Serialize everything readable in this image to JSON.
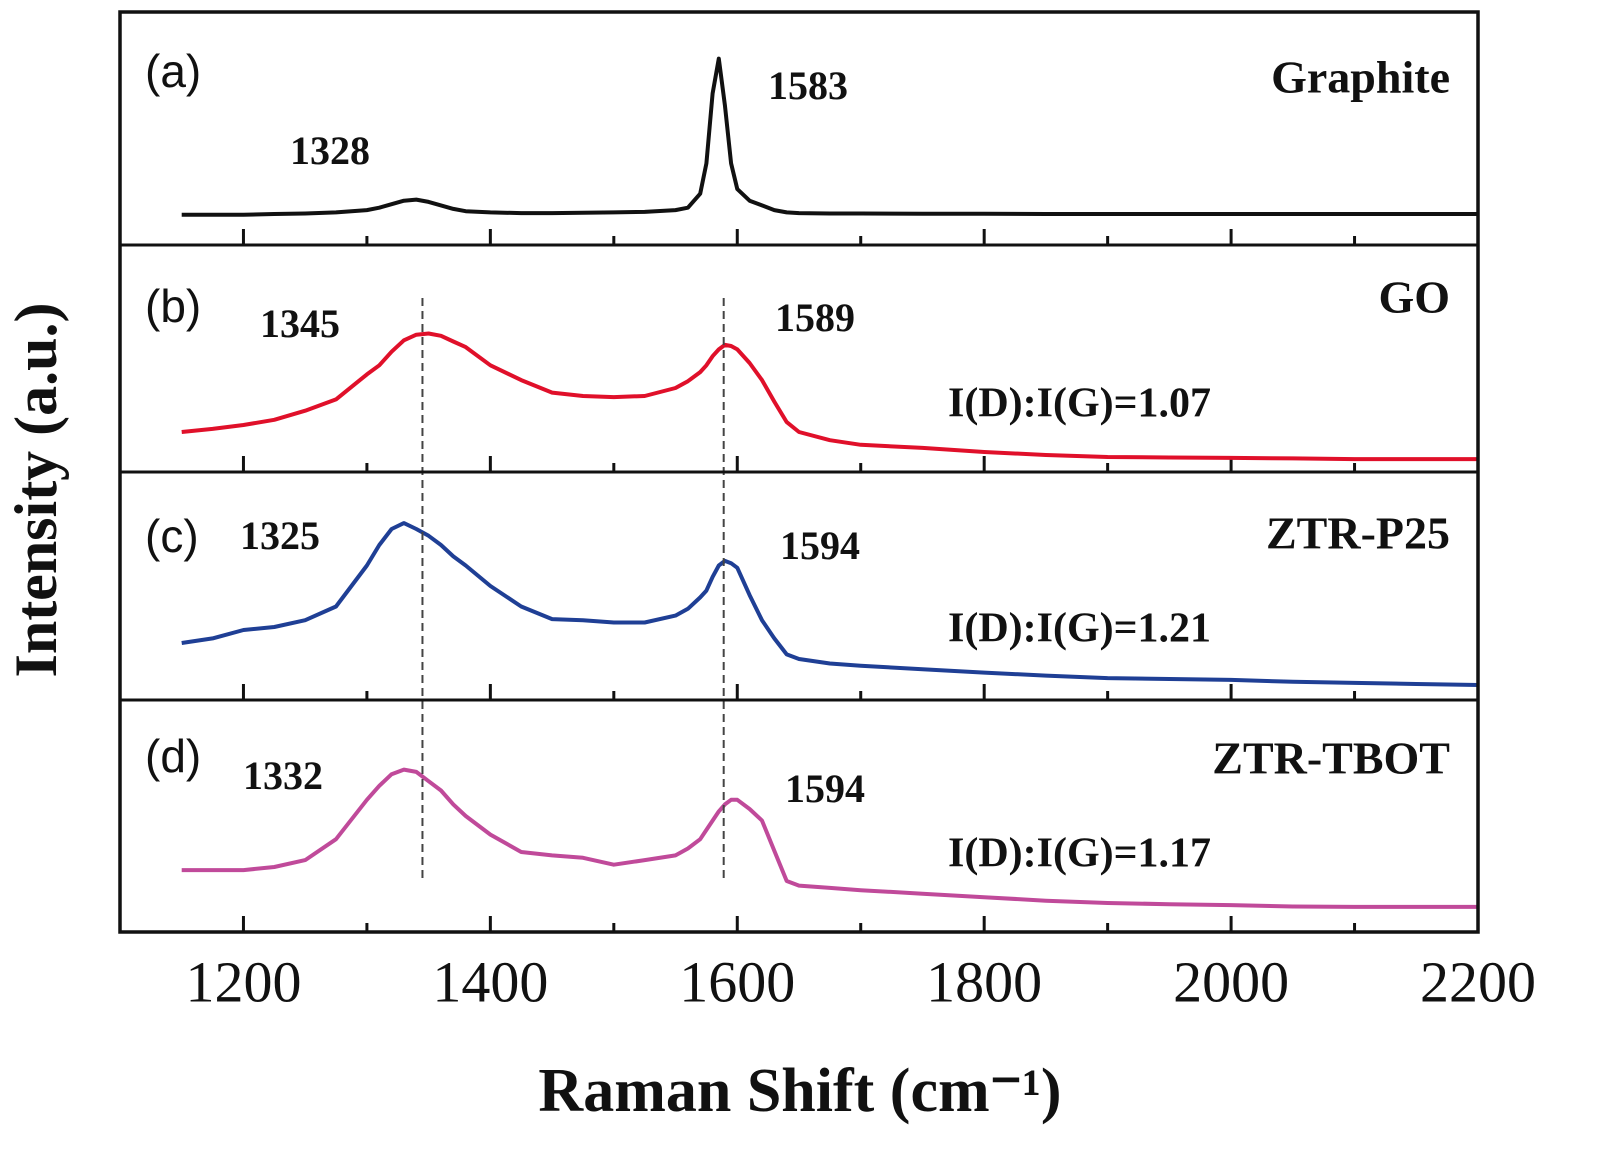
{
  "chart_data": {
    "type": "line",
    "xlabel": "Raman Shift (cm⁻¹)",
    "ylabel": "Intensity (a.u.)",
    "xlim": [
      1100,
      2200
    ],
    "xticks": [
      1200,
      1400,
      1600,
      1800,
      2000,
      2200
    ],
    "xticks_minor": [
      1300,
      1500,
      1700,
      1900,
      2100
    ],
    "ylim": [
      0,
      100
    ],
    "x": [
      1150,
      1175,
      1200,
      1225,
      1250,
      1275,
      1300,
      1310,
      1320,
      1330,
      1340,
      1350,
      1360,
      1370,
      1380,
      1400,
      1425,
      1450,
      1475,
      1500,
      1525,
      1550,
      1560,
      1570,
      1575,
      1580,
      1585,
      1590,
      1595,
      1600,
      1610,
      1620,
      1630,
      1640,
      1650,
      1675,
      1700,
      1750,
      1800,
      1850,
      1900,
      1950,
      2000,
      2050,
      2100,
      2150,
      2200
    ],
    "series": [
      {
        "name": "Graphite",
        "panel": "(a)",
        "color": "#111111",
        "peaks": [
          1328,
          1583
        ],
        "values": [
          13,
          13,
          13,
          13.3,
          13.5,
          14,
          15,
          16,
          17.5,
          19,
          19.5,
          18.5,
          17,
          15.5,
          14.5,
          14,
          13.7,
          13.7,
          13.8,
          14,
          14.2,
          15,
          16,
          22,
          35,
          65,
          80,
          60,
          35,
          24,
          19,
          17,
          15,
          14,
          13.7,
          13.5,
          13.5,
          13.4,
          13.4,
          13.3,
          13.3,
          13.3,
          13.3,
          13.3,
          13.3,
          13.3,
          13.3
        ]
      },
      {
        "name": "GO",
        "panel": "(b)",
        "color": "#e0102a",
        "peaks": [
          1345,
          1589
        ],
        "ratio": "I(D):I(G)=1.07",
        "values": [
          17.6,
          19,
          20.7,
          23,
          27,
          32,
          43,
          47,
          53,
          58,
          60.5,
          61,
          60,
          57.5,
          55,
          47,
          40.5,
          35,
          33.5,
          33,
          33.5,
          37,
          40,
          44,
          47,
          51,
          54,
          56,
          55.5,
          54,
          48,
          40.5,
          31,
          22,
          17.6,
          14,
          12,
          10.6,
          8.8,
          7.5,
          6.6,
          6.4,
          6.2,
          6,
          5.7,
          5.7,
          5.7
        ]
      },
      {
        "name": "ZTR-P25",
        "panel": "(c)",
        "color": "#1f3f95",
        "peaks": [
          1325,
          1594
        ],
        "ratio": "I(D):I(G)=1.21",
        "values": [
          25,
          27,
          30.7,
          32,
          35,
          41,
          59,
          68,
          75,
          77.6,
          75,
          72,
          68,
          63,
          59,
          50,
          41,
          35.5,
          35,
          34,
          34,
          37,
          40,
          45,
          48,
          54,
          59,
          61,
          60,
          58,
          46,
          35,
          27,
          20,
          18,
          16,
          15,
          13.5,
          12,
          10.7,
          9.6,
          9.2,
          8.8,
          8,
          7.5,
          7,
          6.6
        ]
      },
      {
        "name": "ZTR-TBOT",
        "panel": "(d)",
        "color": "#c04a9a",
        "peaks": [
          1332,
          1594
        ],
        "ratio": "I(D):I(G)=1.17",
        "values": [
          26.7,
          26.7,
          26.7,
          28,
          31,
          40,
          57,
          63,
          68,
          70,
          69,
          65,
          61,
          55,
          50,
          42,
          34.5,
          33,
          32,
          29,
          31,
          33,
          36,
          40,
          44,
          48,
          52,
          55,
          57,
          57,
          53,
          48,
          35,
          22,
          20,
          19,
          18,
          16.5,
          15,
          13.5,
          12.5,
          12,
          11.6,
          11,
          10.8,
          10.8,
          10.8
        ]
      }
    ]
  }
}
